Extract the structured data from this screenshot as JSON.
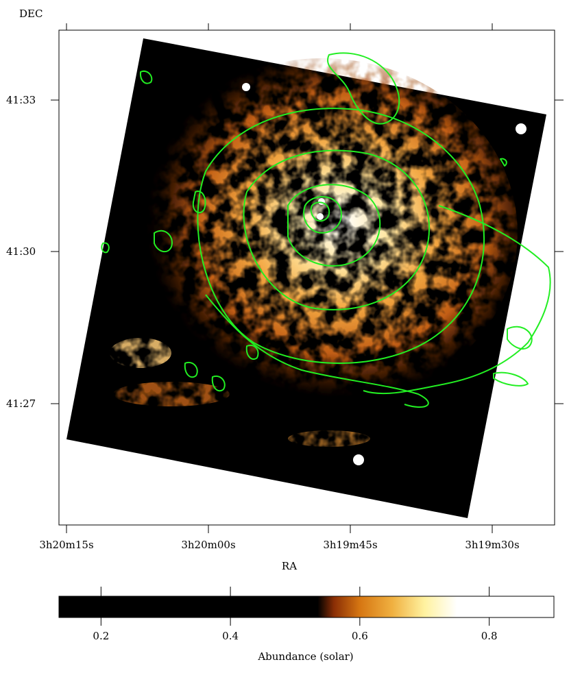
{
  "chart_data": [
    {
      "type": "heatmap",
      "title": "",
      "xlabel": "RA",
      "ylabel": "DEC",
      "x_ticks": [
        "3h20m15s",
        "3h20m00s",
        "3h19m45s",
        "3h19m30s"
      ],
      "y_ticks": [
        "41:33",
        "41:30",
        "41:27"
      ],
      "overlay": "contours",
      "contour_color": "#22ee22",
      "image_colormap": "black-orange-white"
    },
    {
      "type": "colorbar",
      "label": "Abundance (solar)",
      "ticks": [
        0.2,
        0.4,
        0.6,
        0.8
      ],
      "tick_labels": [
        "0.2",
        "0.4",
        "0.6",
        "0.8"
      ],
      "range": [
        0.135,
        0.9
      ],
      "colormap_stops": [
        {
          "value": 0.135,
          "color": "#000000"
        },
        {
          "value": 0.535,
          "color": "#000000"
        },
        {
          "value": 0.56,
          "color": "#8a2e05"
        },
        {
          "value": 0.6,
          "color": "#d67612"
        },
        {
          "value": 0.65,
          "color": "#f0b040"
        },
        {
          "value": 0.7,
          "color": "#fff2a0"
        },
        {
          "value": 0.75,
          "color": "#ffffff"
        },
        {
          "value": 0.9,
          "color": "#ffffff"
        }
      ]
    }
  ]
}
